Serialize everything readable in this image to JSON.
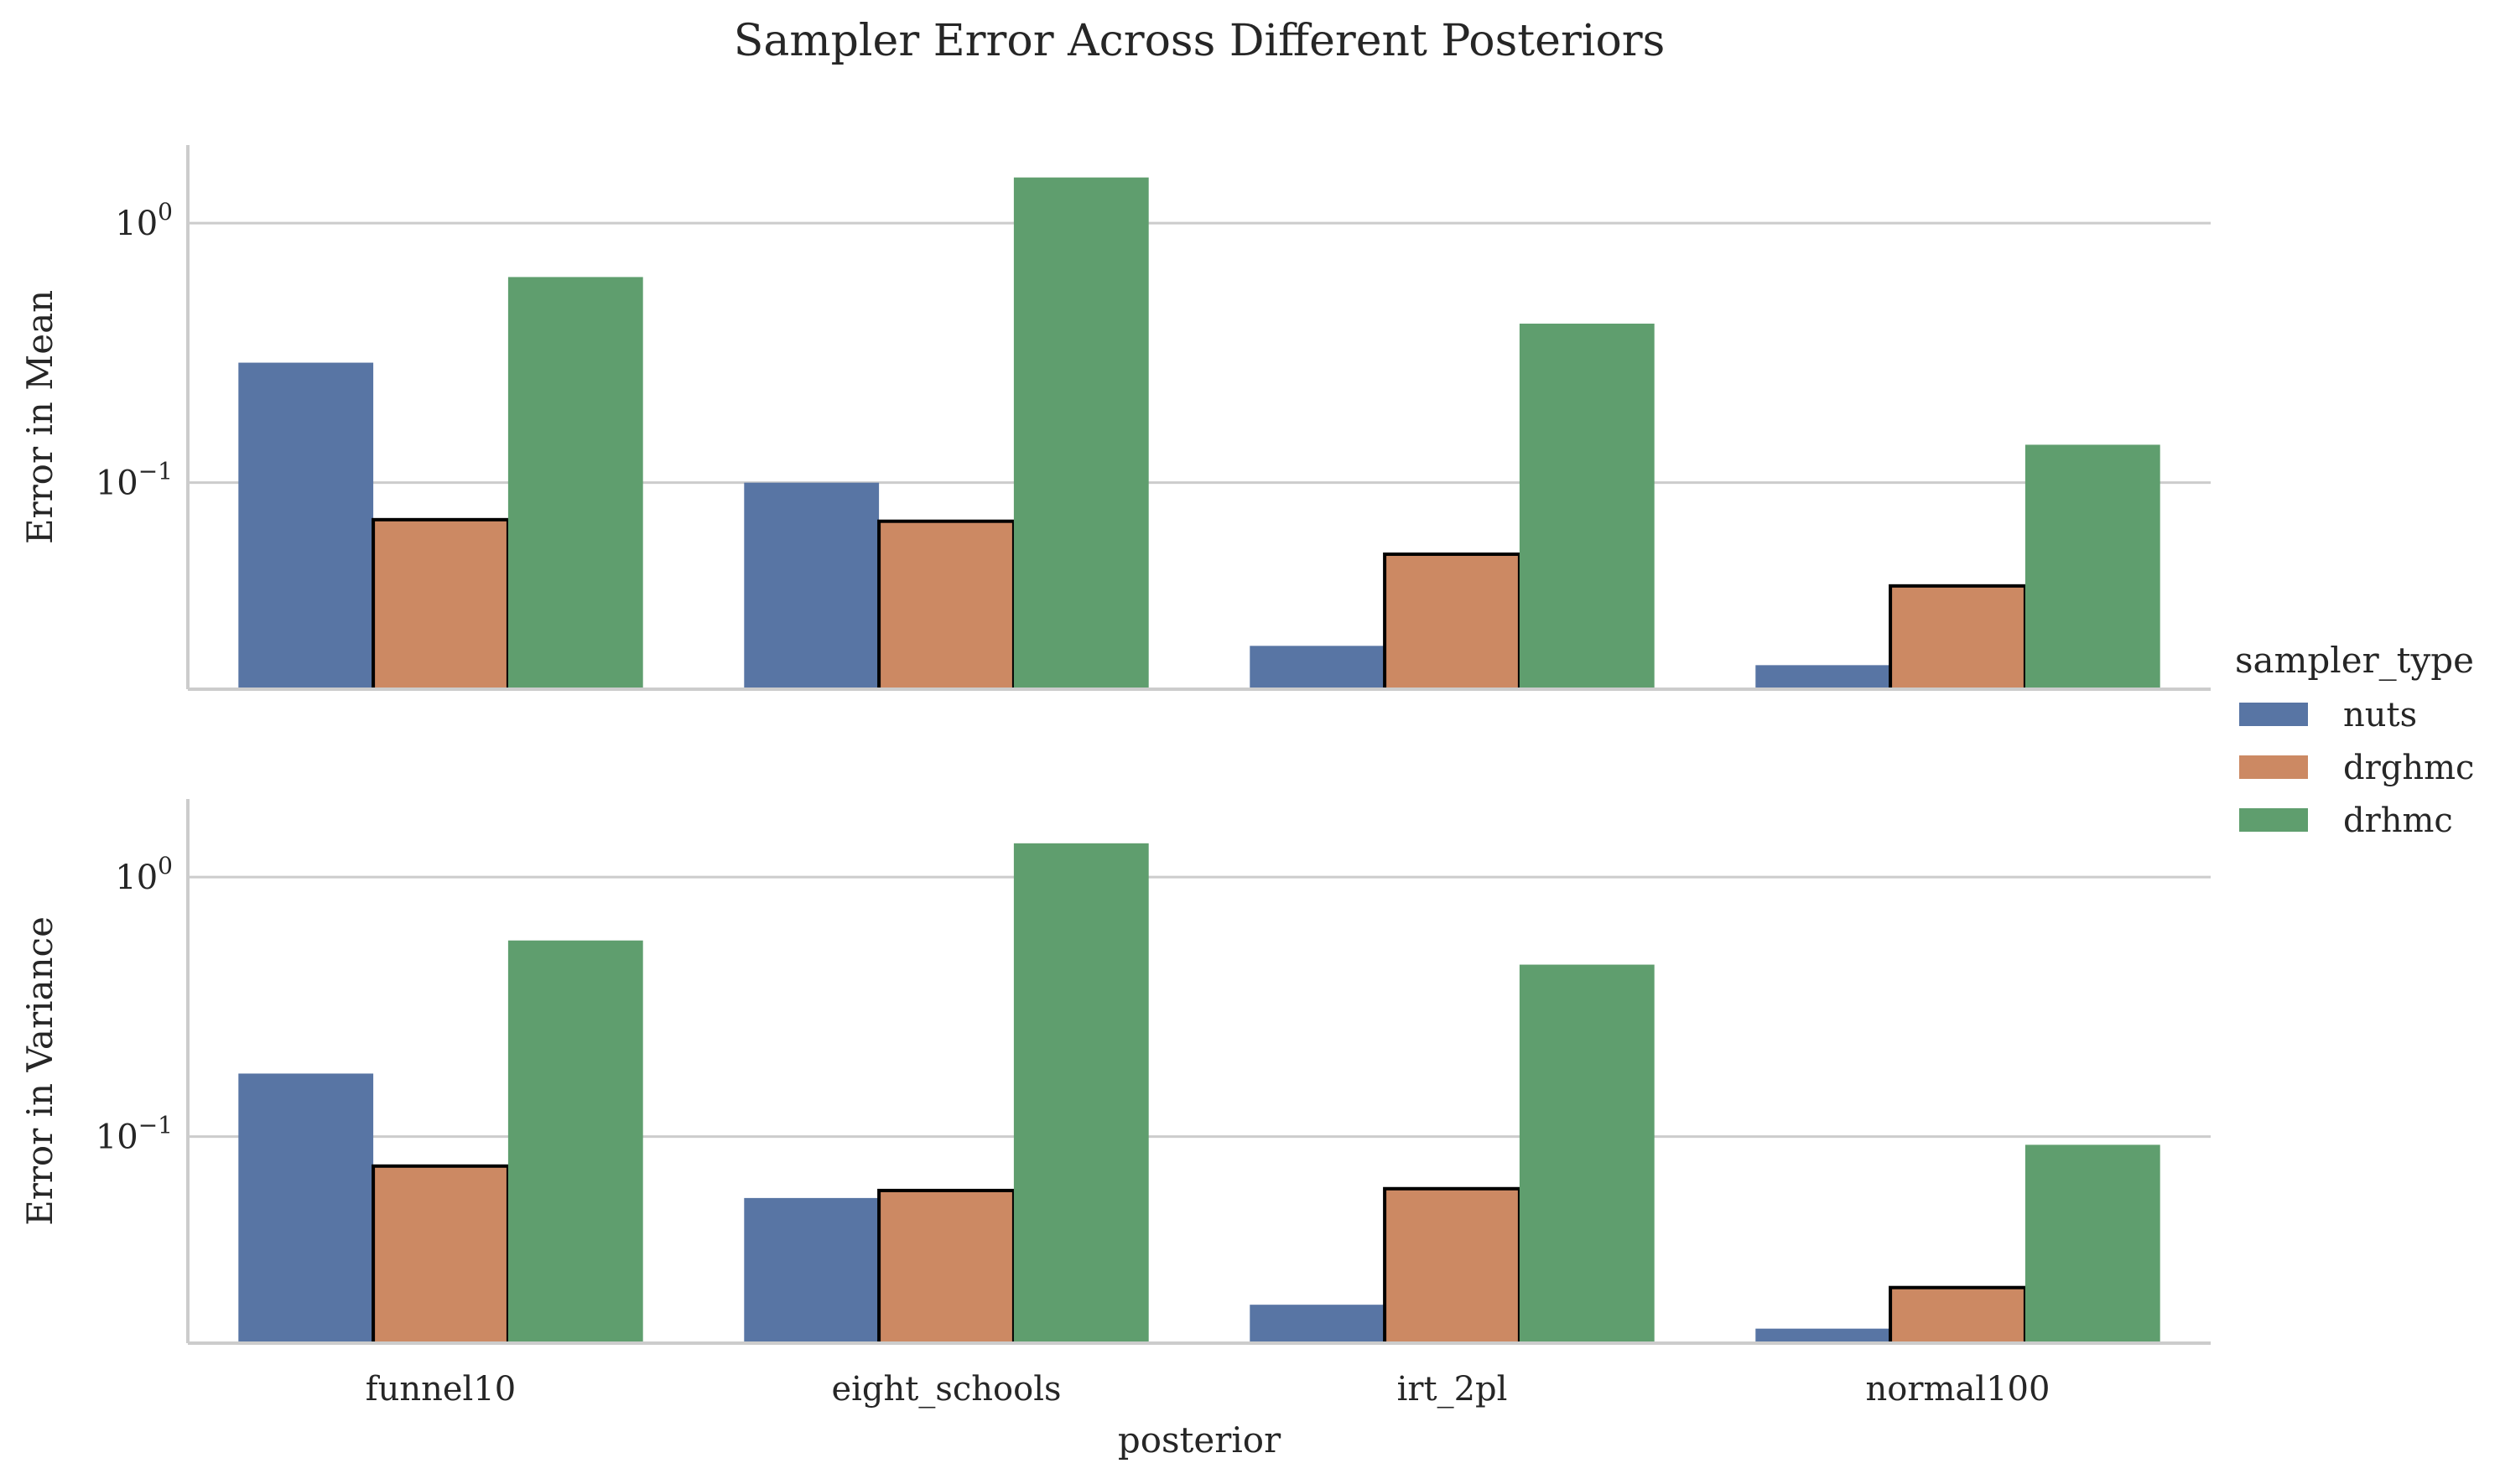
{
  "title": "Sampler Error Across Different Posteriors",
  "xlabel": "posterior",
  "legend": {
    "title": "sampler_type",
    "placement": "center-right"
  },
  "colors": {
    "nuts": "#5875a4",
    "drghmc": "#cc8963",
    "drhmc": "#5f9e6e",
    "highlight_edge": "#000000"
  },
  "chart_data": {
    "type": "bar",
    "categories": [
      "funnel10",
      "eight_schools",
      "irt_2pl",
      "normal100"
    ],
    "series_names": [
      "nuts",
      "drghmc",
      "drhmc"
    ],
    "highlighted_series": "drghmc",
    "panels": [
      {
        "ylabel": "Error in Mean",
        "yscale": "log",
        "ylim": [
          0.016,
          2.0
        ],
        "yticks": [
          {
            "value": 1,
            "label": "10^0"
          },
          {
            "value": 0.1,
            "label": "10^-1"
          }
        ],
        "grid": true,
        "series": [
          {
            "name": "nuts",
            "values": [
              0.29,
              0.1,
              0.0235,
              0.0198
            ]
          },
          {
            "name": "drghmc",
            "values": [
              0.072,
              0.071,
              0.053,
              0.04
            ]
          },
          {
            "name": "drhmc",
            "values": [
              0.62,
              1.5,
              0.41,
              0.14
            ]
          }
        ]
      },
      {
        "ylabel": "Error in Variance",
        "yscale": "log",
        "ylim": [
          0.016,
          2.0
        ],
        "yticks": [
          {
            "value": 1,
            "label": "10^0"
          },
          {
            "value": 0.1,
            "label": "10^-1"
          }
        ],
        "grid": true,
        "series": [
          {
            "name": "nuts",
            "values": [
              0.175,
              0.058,
              0.0225,
              0.0182
            ]
          },
          {
            "name": "drghmc",
            "values": [
              0.077,
              0.062,
              0.063,
              0.0262
            ]
          },
          {
            "name": "drhmc",
            "values": [
              0.57,
              1.35,
              0.46,
              0.093
            ]
          }
        ]
      }
    ]
  }
}
